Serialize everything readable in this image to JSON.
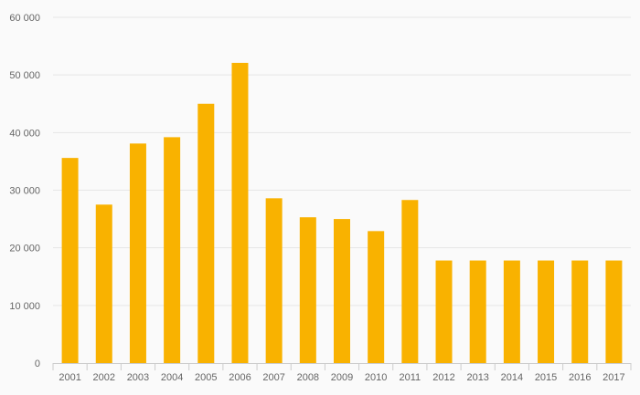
{
  "chart_data": {
    "type": "bar",
    "title": "",
    "xlabel": "",
    "ylabel": "",
    "categories": [
      "2001",
      "2002",
      "2003",
      "2004",
      "2005",
      "2006",
      "2007",
      "2008",
      "2009",
      "2010",
      "2011",
      "2012",
      "2013",
      "2014",
      "2015",
      "2016",
      "2017"
    ],
    "values": [
      35600,
      27500,
      38100,
      39200,
      45000,
      52100,
      28600,
      25300,
      25000,
      22900,
      28300,
      17800,
      17800,
      17800,
      17800,
      17800,
      17800
    ],
    "ylim": [
      0,
      60000
    ],
    "y_ticks": [
      0,
      10000,
      20000,
      30000,
      40000,
      50000,
      60000
    ],
    "y_tick_labels": [
      "0",
      "10 000",
      "20 000",
      "30 000",
      "40 000",
      "50 000",
      "60 000"
    ],
    "grid": true,
    "legend": "none",
    "colors": {
      "bar": "#f9b200",
      "background": "#fafafa"
    }
  }
}
